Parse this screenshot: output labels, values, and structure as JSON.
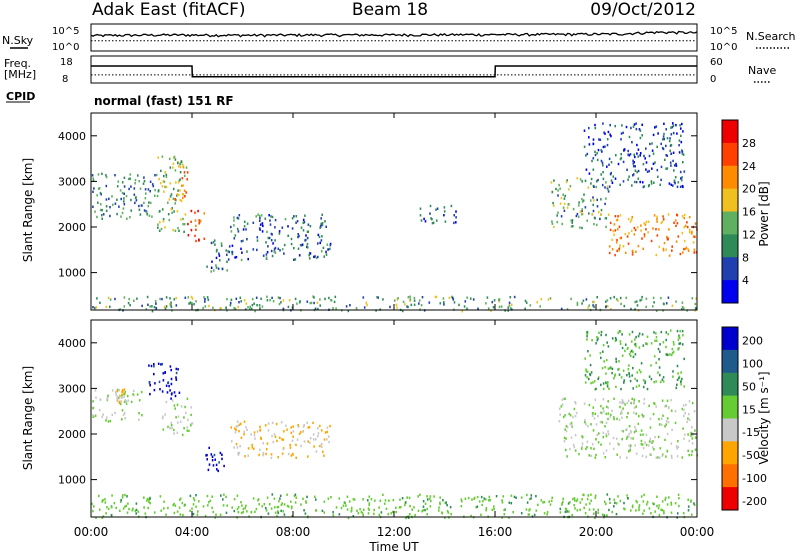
{
  "header": {
    "station": "Adak East (fitACF)",
    "beam": "Beam 18",
    "date": "09/Oct/2012"
  },
  "top_panels": {
    "nsky_label": "N.Sky",
    "nsearch_label": "N.Search",
    "noise_ticks": [
      "10^5",
      "10^0"
    ],
    "freq_label_1": "Freq.",
    "freq_label_2": "[MHz]",
    "freq_ticks": [
      "18",
      "8"
    ],
    "nave_label": "Nave",
    "nave_ticks": [
      "60",
      "0"
    ],
    "cpid_label": "CPID",
    "cpid_text": "normal (fast) 151 RF"
  },
  "x_axis": {
    "title": "Time UT",
    "ticks": [
      "00:00",
      "04:00",
      "08:00",
      "12:00",
      "16:00",
      "20:00",
      "00:00"
    ],
    "range_hours": [
      0,
      24
    ]
  },
  "colors": {
    "power_scale": [
      "#0000ee",
      "#2040b0",
      "#2e8b57",
      "#5fb060",
      "#f0c020",
      "#ff8c00",
      "#ff4000",
      "#ee0000"
    ],
    "velocity_scale": [
      "#0000cc",
      "#1e5a8a",
      "#2e8b57",
      "#66cc33",
      "#c8c8c8",
      "#ffa500",
      "#ff7000",
      "#ee0000"
    ]
  },
  "chart_data": [
    {
      "type": "line",
      "title": "N.Sky / N.Search",
      "yscale": "log",
      "ylim": [
        1,
        100000
      ],
      "x": [
        0,
        3,
        6,
        9,
        12,
        15,
        18,
        21,
        22.5,
        24
      ],
      "series": [
        {
          "name": "N.Sky",
          "values": [
            600,
            800,
            700,
            800,
            800,
            900,
            1000,
            1200,
            2500,
            2000
          ]
        },
        {
          "name": "N.Search",
          "values": [
            80,
            80,
            80,
            80,
            80,
            80,
            80,
            80,
            80,
            80
          ]
        }
      ]
    },
    {
      "type": "line",
      "title": "Freq. / Nave",
      "ylim": [
        8,
        18
      ],
      "y2lim": [
        0,
        60
      ],
      "x": [
        0,
        4,
        4.01,
        16,
        16.01,
        24
      ],
      "series": [
        {
          "name": "Freq.",
          "values": [
            14.3,
            14.3,
            10.3,
            10.3,
            14.3,
            14.3
          ]
        },
        {
          "name": "Nave",
          "values": [
            18,
            18,
            18,
            18,
            18,
            18
          ]
        }
      ]
    },
    {
      "type": "heatmap",
      "title": "Power",
      "ylabel": "Slant Range [km]",
      "ylim": [
        180,
        4500
      ],
      "y_ticks": [
        1000,
        2000,
        3000,
        4000
      ],
      "colorbar": {
        "label": "Power [dB]",
        "ticks": [
          "28",
          "24",
          "20",
          "16",
          "12",
          "8",
          "4"
        ],
        "range": [
          0,
          32
        ]
      },
      "regions": [
        {
          "t": [
            0.0,
            2.6
          ],
          "r": [
            2200,
            3200
          ],
          "value": 10
        },
        {
          "t": [
            2.6,
            3.8
          ],
          "r": [
            1900,
            3600
          ],
          "value": 14
        },
        {
          "t": [
            3.3,
            3.8
          ],
          "r": [
            2600,
            3400
          ],
          "value": 22
        },
        {
          "t": [
            3.8,
            4.5
          ],
          "r": [
            1700,
            2400
          ],
          "value": 26
        },
        {
          "t": [
            4.5,
            5.5
          ],
          "r": [
            1050,
            1800
          ],
          "value": 8
        },
        {
          "t": [
            5.5,
            9.5
          ],
          "r": [
            1300,
            2300
          ],
          "value": 8
        },
        {
          "t": [
            13.0,
            14.5
          ],
          "r": [
            2100,
            2500
          ],
          "value": 6
        },
        {
          "t": [
            18.2,
            20.5
          ],
          "r": [
            2000,
            3100
          ],
          "value": 12
        },
        {
          "t": [
            20.5,
            24.0
          ],
          "r": [
            1400,
            2300
          ],
          "value": 22
        },
        {
          "t": [
            19.5,
            23.5
          ],
          "r": [
            2900,
            4300
          ],
          "value": 6
        },
        {
          "t": [
            0.0,
            24.0
          ],
          "r": [
            180,
            500
          ],
          "value": 12
        }
      ]
    },
    {
      "type": "heatmap",
      "title": "Velocity",
      "ylabel": "Slant Range [km]",
      "ylim": [
        180,
        4500
      ],
      "y_ticks": [
        1000,
        2000,
        3000,
        4000
      ],
      "colorbar": {
        "label": "Velocity [m s⁻¹]",
        "ticks": [
          "200",
          "100",
          "50",
          "15",
          "-15",
          "-50",
          "-100",
          "-200"
        ],
        "range": [
          -250,
          250
        ]
      },
      "regions": [
        {
          "t": [
            0.0,
            2.0
          ],
          "r": [
            2300,
            3000
          ],
          "value": 0
        },
        {
          "t": [
            1.0,
            1.4
          ],
          "r": [
            2700,
            3000
          ],
          "value": -60
        },
        {
          "t": [
            2.2,
            3.5
          ],
          "r": [
            2800,
            3600
          ],
          "value": 220
        },
        {
          "t": [
            2.8,
            4.0
          ],
          "r": [
            2000,
            2800
          ],
          "value": 0
        },
        {
          "t": [
            4.5,
            5.3
          ],
          "r": [
            1200,
            1800
          ],
          "value": 220
        },
        {
          "t": [
            5.5,
            9.5
          ],
          "r": [
            1500,
            2300
          ],
          "value": -60
        },
        {
          "t": [
            18.5,
            24.0
          ],
          "r": [
            1500,
            2800
          ],
          "value": 0
        },
        {
          "t": [
            19.5,
            23.5
          ],
          "r": [
            3000,
            4300
          ],
          "value": 60
        },
        {
          "t": [
            0.0,
            24.0
          ],
          "r": [
            180,
            700
          ],
          "value": 40
        }
      ]
    }
  ]
}
